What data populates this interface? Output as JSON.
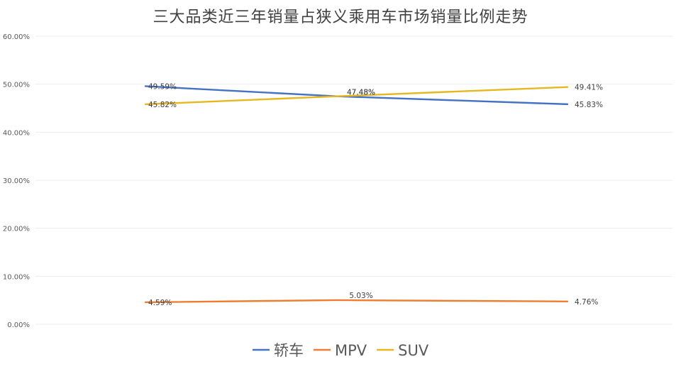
{
  "chart_data": {
    "type": "line",
    "title": "三大品类近三年销量占狭义乘用车市场销量比例走势",
    "categories": [
      "",
      "",
      ""
    ],
    "ylim": [
      0,
      0.6
    ],
    "y_ticks": [
      "0.00%",
      "10.00%",
      "20.00%",
      "30.00%",
      "40.00%",
      "50.00%",
      "60.00%"
    ],
    "grid": true,
    "legend_position": "bottom",
    "series": [
      {
        "name": "轿车",
        "color": "#4472C4",
        "values": [
          0.4959,
          0.4748,
          0.4583
        ],
        "labels": [
          "49.59%",
          "47.48%",
          "45.83%"
        ]
      },
      {
        "name": "MPV",
        "color": "#ED7D31",
        "values": [
          0.0459,
          0.0503,
          0.0476
        ],
        "labels": [
          "4.59%",
          "5.03%",
          "4.76%"
        ]
      },
      {
        "name": "SUV",
        "color": "#E6B820",
        "values": [
          0.4582,
          0.4748,
          0.4941
        ],
        "labels": [
          "45.82%",
          "47.48%",
          "49.41%"
        ]
      }
    ]
  }
}
